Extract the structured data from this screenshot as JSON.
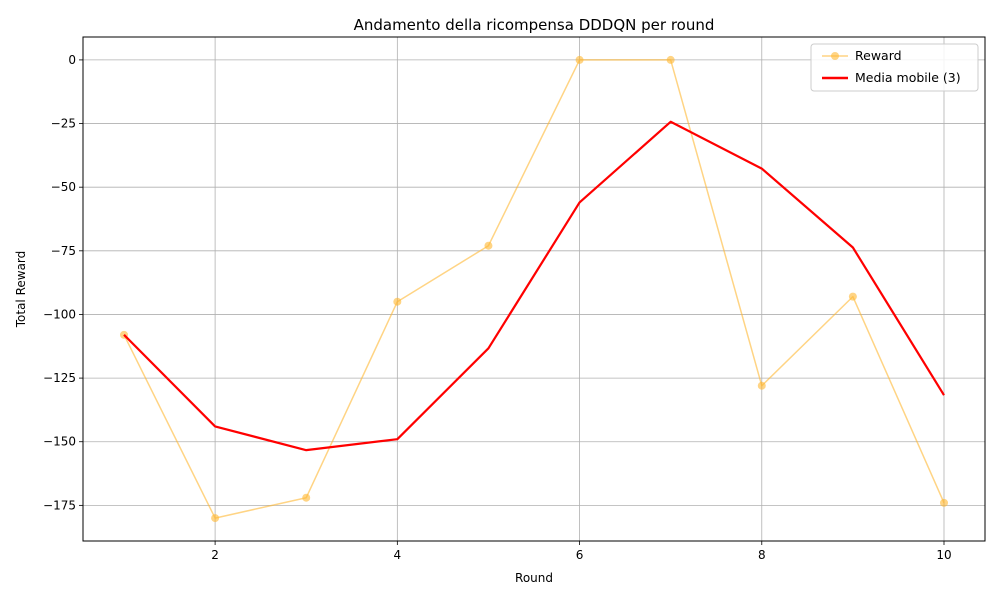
{
  "chart_data": {
    "type": "line",
    "title": "Andamento della ricompensa DDDQN per round",
    "xlabel": "Round",
    "ylabel": "Total Reward",
    "x": [
      1,
      2,
      3,
      4,
      5,
      6,
      7,
      8,
      9,
      10
    ],
    "xlim": [
      0.55,
      10.45
    ],
    "ylim": [
      -189,
      9
    ],
    "xticks": [
      2,
      4,
      6,
      8,
      10
    ],
    "yticks": [
      0,
      -25,
      -50,
      -75,
      -100,
      -125,
      -150,
      -175
    ],
    "grid": true,
    "legend_position": "top-right",
    "series": [
      {
        "name": "Reward",
        "color": "#FFB732",
        "marker": "circle",
        "values": [
          -108,
          -180,
          -172,
          -95,
          -73,
          0,
          0,
          -128,
          -93,
          -174
        ]
      },
      {
        "name": "Media mobile (3)",
        "color": "#FF0000",
        "marker": "none",
        "values": [
          -108,
          -144,
          -153.3,
          -149,
          -113.3,
          -56,
          -24.3,
          -42.7,
          -73.7,
          -131.7
        ]
      }
    ]
  }
}
